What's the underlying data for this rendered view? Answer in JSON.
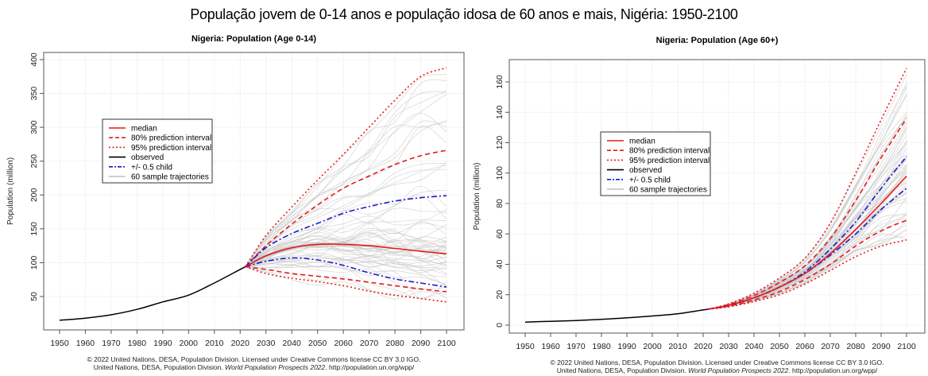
{
  "page_title": "População jovem de 0-14 anos e população idosa de 60 anos e mais, Nigéria: 1950-2100",
  "footer": {
    "line1": "© 2022 United Nations, DESA, Population Division. Licensed under Creative Commons license CC BY 3.0 IGO.",
    "line2_prefix": "United Nations, DESA, Population Division. ",
    "line2_italic": "World Population Prospects 2022",
    "line2_suffix": ". http://population.un.org/wpp/"
  },
  "legend": {
    "items": [
      {
        "label": "median",
        "color": "#e41a1c",
        "style": "solid"
      },
      {
        "label": "80% prediction interval",
        "color": "#e41a1c",
        "style": "dashed"
      },
      {
        "label": "95% prediction interval",
        "color": "#e41a1c",
        "style": "dotted"
      },
      {
        "label": "observed",
        "color": "#000000",
        "style": "solid"
      },
      {
        "label": "+/- 0.5 child",
        "color": "#1a1acc",
        "style": "dashdot"
      },
      {
        "label": "60 sample trajectories",
        "color": "#bdbdbd",
        "style": "solid"
      }
    ]
  },
  "chart_data": [
    {
      "type": "line",
      "title": "Nigeria: Population (Age 0-14)",
      "xlabel": "",
      "ylabel": "Population (million)",
      "xlim": [
        1950,
        2100
      ],
      "ylim": [
        0,
        400
      ],
      "x_ticks": [
        1950,
        1960,
        1970,
        1980,
        1990,
        2000,
        2010,
        2020,
        2030,
        2040,
        2050,
        2060,
        2070,
        2080,
        2090,
        2100
      ],
      "y_ticks": [
        50,
        100,
        150,
        200,
        250,
        300,
        350,
        400
      ],
      "grid": true,
      "legend_position": "upper-left",
      "observed": {
        "x": [
          1950,
          1960,
          1970,
          1980,
          1990,
          2000,
          2010,
          2020,
          2022
        ],
        "y": [
          15,
          18,
          23,
          31,
          42,
          52,
          70,
          90,
          94
        ]
      },
      "projections": {
        "x": [
          2022,
          2030,
          2040,
          2050,
          2060,
          2070,
          2080,
          2090,
          2100
        ],
        "median": [
          94,
          110,
          122,
          127,
          127,
          125,
          121,
          117,
          113
        ],
        "pi80_upper": [
          94,
          125,
          157,
          185,
          210,
          228,
          245,
          258,
          266
        ],
        "pi80_lower": [
          94,
          90,
          84,
          80,
          76,
          71,
          66,
          61,
          57
        ],
        "pi95_upper": [
          94,
          140,
          182,
          222,
          260,
          300,
          340,
          375,
          388
        ],
        "pi95_lower": [
          94,
          84,
          77,
          72,
          66,
          58,
          52,
          47,
          42
        ],
        "plus_half_child": [
          94,
          122,
          143,
          158,
          173,
          183,
          191,
          196,
          199
        ],
        "minus_half_child": [
          94,
          102,
          107,
          104,
          96,
          85,
          76,
          70,
          64
        ]
      }
    },
    {
      "type": "line",
      "title": "Nigeria: Population (Age 60+)",
      "xlabel": "",
      "ylabel": "Population (million)",
      "xlim": [
        1950,
        2100
      ],
      "ylim": [
        0,
        165
      ],
      "x_ticks": [
        1950,
        1960,
        1970,
        1980,
        1990,
        2000,
        2010,
        2020,
        2030,
        2040,
        2050,
        2060,
        2070,
        2080,
        2090,
        2100
      ],
      "y_ticks": [
        0,
        20,
        40,
        60,
        80,
        100,
        120,
        140,
        160
      ],
      "grid": true,
      "legend_position": "upper-left",
      "observed": {
        "x": [
          1950,
          1960,
          1970,
          1980,
          1990,
          2000,
          2010,
          2020,
          2022
        ],
        "y": [
          2,
          2.5,
          3,
          3.8,
          4.8,
          6,
          7.5,
          10,
          10.5
        ]
      },
      "projections": {
        "x": [
          2022,
          2030,
          2040,
          2050,
          2060,
          2070,
          2080,
          2090,
          2100
        ],
        "median": [
          10.5,
          13,
          18,
          25,
          34,
          47,
          63,
          80,
          98
        ],
        "pi80_upper": [
          10.5,
          13.5,
          19.5,
          28,
          39,
          57,
          82,
          110,
          136
        ],
        "pi80_lower": [
          10.5,
          12.5,
          16.5,
          22,
          30,
          40,
          52,
          62,
          69
        ],
        "pi95_upper": [
          10.5,
          14,
          21,
          31,
          44,
          67,
          100,
          135,
          169
        ],
        "pi95_lower": [
          10.5,
          12,
          15.5,
          20,
          27,
          36,
          45,
          52,
          56
        ],
        "plus_half_child": [
          10.5,
          13,
          18,
          25,
          35,
          50,
          68,
          90,
          111
        ],
        "minus_half_child": [
          10.5,
          13,
          18,
          25,
          34,
          46,
          60,
          76,
          90
        ]
      }
    }
  ]
}
